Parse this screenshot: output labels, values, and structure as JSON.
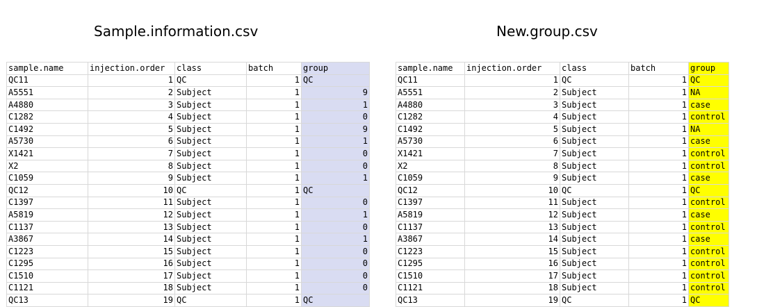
{
  "left": {
    "caption": "Sample.information.csv",
    "headers": [
      "sample.name",
      "injection.order",
      "class",
      "batch",
      "group"
    ],
    "rows": [
      [
        "QC11",
        "1",
        "QC",
        "1",
        "QC"
      ],
      [
        "A5551",
        "2",
        "Subject",
        "1",
        "9"
      ],
      [
        "A4880",
        "3",
        "Subject",
        "1",
        "1"
      ],
      [
        "C1282",
        "4",
        "Subject",
        "1",
        "0"
      ],
      [
        "C1492",
        "5",
        "Subject",
        "1",
        "9"
      ],
      [
        "A5730",
        "6",
        "Subject",
        "1",
        "1"
      ],
      [
        "X1421",
        "7",
        "Subject",
        "1",
        "0"
      ],
      [
        "X2",
        "8",
        "Subject",
        "1",
        "0"
      ],
      [
        "C1059",
        "9",
        "Subject",
        "1",
        "1"
      ],
      [
        "QC12",
        "10",
        "QC",
        "1",
        "QC"
      ],
      [
        "C1397",
        "11",
        "Subject",
        "1",
        "0"
      ],
      [
        "A5819",
        "12",
        "Subject",
        "1",
        "1"
      ],
      [
        "C1137",
        "13",
        "Subject",
        "1",
        "0"
      ],
      [
        "A3867",
        "14",
        "Subject",
        "1",
        "1"
      ],
      [
        "C1223",
        "15",
        "Subject",
        "1",
        "0"
      ],
      [
        "C1295",
        "16",
        "Subject",
        "1",
        "0"
      ],
      [
        "C1510",
        "17",
        "Subject",
        "1",
        "0"
      ],
      [
        "C1121",
        "18",
        "Subject",
        "1",
        "0"
      ],
      [
        "QC13",
        "19",
        "QC",
        "1",
        "QC"
      ]
    ]
  },
  "right": {
    "caption": "New.group.csv",
    "headers": [
      "sample.name",
      "injection.order",
      "class",
      "batch",
      "group"
    ],
    "rows": [
      [
        "QC11",
        "1",
        "QC",
        "1",
        "QC"
      ],
      [
        "A5551",
        "2",
        "Subject",
        "1",
        "NA"
      ],
      [
        "A4880",
        "3",
        "Subject",
        "1",
        "case"
      ],
      [
        "C1282",
        "4",
        "Subject",
        "1",
        "control"
      ],
      [
        "C1492",
        "5",
        "Subject",
        "1",
        "NA"
      ],
      [
        "A5730",
        "6",
        "Subject",
        "1",
        "case"
      ],
      [
        "X1421",
        "7",
        "Subject",
        "1",
        "control"
      ],
      [
        "X2",
        "8",
        "Subject",
        "1",
        "control"
      ],
      [
        "C1059",
        "9",
        "Subject",
        "1",
        "case"
      ],
      [
        "QC12",
        "10",
        "QC",
        "1",
        "QC"
      ],
      [
        "C1397",
        "11",
        "Subject",
        "1",
        "control"
      ],
      [
        "A5819",
        "12",
        "Subject",
        "1",
        "case"
      ],
      [
        "C1137",
        "13",
        "Subject",
        "1",
        "control"
      ],
      [
        "A3867",
        "14",
        "Subject",
        "1",
        "case"
      ],
      [
        "C1223",
        "15",
        "Subject",
        "1",
        "control"
      ],
      [
        "C1295",
        "16",
        "Subject",
        "1",
        "control"
      ],
      [
        "C1510",
        "17",
        "Subject",
        "1",
        "control"
      ],
      [
        "C1121",
        "18",
        "Subject",
        "1",
        "control"
      ],
      [
        "QC13",
        "19",
        "QC",
        "1",
        "QC"
      ]
    ]
  },
  "colors": {
    "left_group_highlight": "#d9dcf2",
    "right_group_highlight": "#ffff00"
  }
}
